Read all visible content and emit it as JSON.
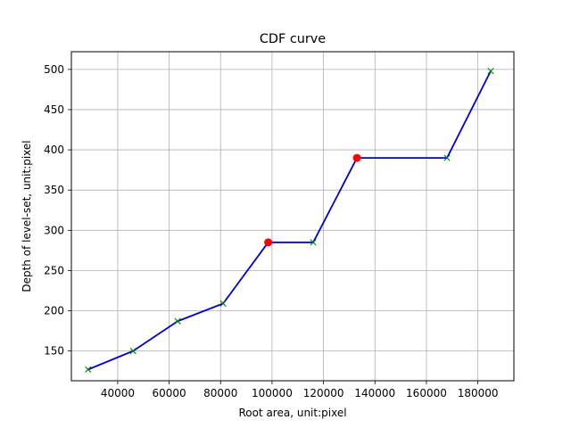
{
  "chart_data": {
    "type": "line",
    "title": "CDF curve",
    "xlabel": "Root area, unit:pixel",
    "ylabel": "Depth of level-set, unit:pixel",
    "xlim": [
      22000,
      194000
    ],
    "ylim": [
      113,
      522
    ],
    "xticks": [
      40000,
      60000,
      80000,
      100000,
      120000,
      140000,
      160000,
      180000
    ],
    "xtick_labels": [
      "40000",
      "60000",
      "80000",
      "100000",
      "120000",
      "140000",
      "160000",
      "180000"
    ],
    "yticks": [
      150,
      200,
      250,
      300,
      350,
      400,
      450,
      500
    ],
    "ytick_labels": [
      "150",
      "200",
      "250",
      "300",
      "350",
      "400",
      "450",
      "500"
    ],
    "grid": true,
    "series": [
      {
        "marker": "line",
        "color": "#0000cc",
        "x": [
          28500,
          46000,
          63300,
          81000,
          98500,
          116000,
          133000,
          168000,
          185000
        ],
        "y": [
          127,
          150,
          187,
          209,
          285,
          285,
          390,
          390,
          498
        ]
      },
      {
        "marker": "x",
        "color": "#008000",
        "x": [
          28500,
          46000,
          63300,
          81000,
          116000,
          168000,
          185000
        ],
        "y": [
          127,
          150,
          187,
          209,
          285,
          390,
          498
        ]
      },
      {
        "marker": "dot",
        "color": "#ff0000",
        "x": [
          98500,
          133000
        ],
        "y": [
          285,
          390
        ]
      }
    ]
  }
}
